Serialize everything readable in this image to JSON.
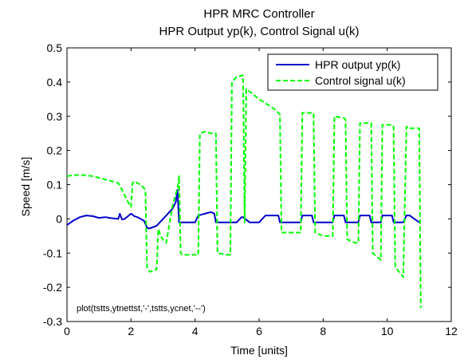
{
  "chart_data": {
    "type": "line",
    "title": "HPR MRC Controller",
    "subtitle": "HPR Output yp(k), Control Signal u(k)",
    "xlabel": "Time [units]",
    "ylabel": "Speed [m/s]",
    "xlim": [
      0,
      12
    ],
    "ylim": [
      -0.3,
      0.5
    ],
    "xticks": [
      0,
      2,
      4,
      6,
      8,
      10,
      12
    ],
    "yticks": [
      -0.3,
      -0.2,
      -0.1,
      0,
      0.1,
      0.2,
      0.3,
      0.4,
      0.5
    ],
    "xtick_labels": [
      "0",
      "2",
      "4",
      "6",
      "8",
      "10",
      "12"
    ],
    "ytick_labels": [
      "-0.3",
      "-0.2",
      "-0.1",
      "0",
      "0.1",
      "0.2",
      "0.3",
      "0.4",
      "0.5"
    ],
    "grid": false,
    "legend_position": "top-right",
    "annotation": "plot(tstts,ytnettst,'-',tstts,ycnet,'--')",
    "series": [
      {
        "name": "HPR output yp(k)",
        "style": "solid",
        "color": "#0000cc",
        "x": [
          0,
          0.2,
          0.4,
          0.6,
          0.8,
          1.0,
          1.2,
          1.4,
          1.6,
          1.65,
          1.72,
          1.8,
          2.0,
          2.05,
          2.1,
          2.2,
          2.4,
          2.5,
          2.55,
          2.6,
          2.8,
          3.0,
          3.2,
          3.3,
          3.4,
          3.45,
          3.5,
          3.55,
          3.6,
          3.8,
          4.0,
          4.1,
          4.3,
          4.5,
          4.6,
          4.65,
          5.0,
          5.1,
          5.3,
          5.45,
          5.5,
          5.7,
          6.0,
          6.2,
          6.5,
          6.6,
          6.65,
          7.0,
          7.3,
          7.35,
          7.5,
          7.65,
          7.7,
          8.0,
          8.3,
          8.35,
          8.6,
          8.65,
          8.7,
          9.0,
          9.1,
          9.15,
          9.3,
          9.45,
          9.5,
          9.8,
          9.85,
          10.0,
          10.15,
          10.2,
          10.5,
          10.6,
          10.7,
          11.0
        ],
        "y": [
          -0.018,
          -0.005,
          0.005,
          0.01,
          0.008,
          0.003,
          0.005,
          0.002,
          0.0,
          0.015,
          -0.002,
          0.0,
          0.015,
          0.012,
          0.008,
          0.005,
          -0.005,
          -0.025,
          -0.028,
          -0.027,
          -0.02,
          0.0,
          0.02,
          0.03,
          0.05,
          0.085,
          -0.01,
          -0.01,
          -0.01,
          -0.01,
          -0.01,
          0.01,
          0.015,
          0.02,
          0.015,
          -0.01,
          -0.01,
          -0.01,
          -0.01,
          0.005,
          0.005,
          -0.01,
          -0.01,
          0.01,
          0.01,
          0.01,
          -0.01,
          -0.01,
          -0.01,
          0.01,
          0.01,
          0.01,
          -0.01,
          -0.01,
          -0.01,
          0.01,
          0.01,
          0.01,
          -0.01,
          -0.01,
          -0.01,
          0.01,
          0.01,
          0.01,
          -0.01,
          -0.01,
          0.01,
          0.01,
          0.01,
          -0.01,
          -0.01,
          0.01,
          0.01,
          -0.01
        ]
      },
      {
        "name": "Control signal u(k)",
        "style": "dashed",
        "color": "#00ff00",
        "x": [
          0,
          0.2,
          0.5,
          0.8,
          1.0,
          1.2,
          1.4,
          1.6,
          1.75,
          1.9,
          2.0,
          2.05,
          2.1,
          2.2,
          2.3,
          2.45,
          2.5,
          2.55,
          2.6,
          2.7,
          2.8,
          2.85,
          2.95,
          3.1,
          3.3,
          3.45,
          3.5,
          3.55,
          3.6,
          3.8,
          4.0,
          4.1,
          4.15,
          4.3,
          4.5,
          4.6,
          4.65,
          4.7,
          5.0,
          5.1,
          5.15,
          5.3,
          5.5,
          5.55,
          5.6,
          6.0,
          6.5,
          6.6,
          6.65,
          6.7,
          7.0,
          7.3,
          7.35,
          7.65,
          7.7,
          7.75,
          8.0,
          8.3,
          8.35,
          8.65,
          8.7,
          8.75,
          9.0,
          9.1,
          9.15,
          9.45,
          9.5,
          9.55,
          9.8,
          9.85,
          10.15,
          10.2,
          10.25,
          10.5,
          10.6,
          10.65,
          11.0,
          11.05
        ],
        "y": [
          0.125,
          0.128,
          0.128,
          0.125,
          0.12,
          0.115,
          0.11,
          0.105,
          0.08,
          0.05,
          0.035,
          0.105,
          0.11,
          0.105,
          0.1,
          0.085,
          -0.14,
          -0.15,
          -0.155,
          -0.15,
          -0.148,
          -0.03,
          -0.055,
          -0.07,
          0.04,
          0.09,
          0.125,
          -0.1,
          -0.105,
          -0.105,
          -0.105,
          -0.105,
          0.25,
          0.255,
          0.25,
          0.25,
          0.25,
          -0.1,
          -0.105,
          -0.105,
          0.4,
          0.415,
          0.42,
          -0.01,
          0.38,
          0.35,
          0.32,
          0.31,
          0.305,
          -0.04,
          -0.04,
          -0.04,
          0.31,
          0.31,
          0.31,
          -0.04,
          -0.05,
          -0.05,
          0.3,
          0.295,
          0.29,
          -0.06,
          -0.07,
          -0.07,
          0.28,
          0.28,
          0.28,
          -0.1,
          -0.12,
          0.275,
          0.275,
          0.27,
          -0.14,
          -0.17,
          0.27,
          0.265,
          0.265,
          -0.26
        ]
      }
    ]
  }
}
